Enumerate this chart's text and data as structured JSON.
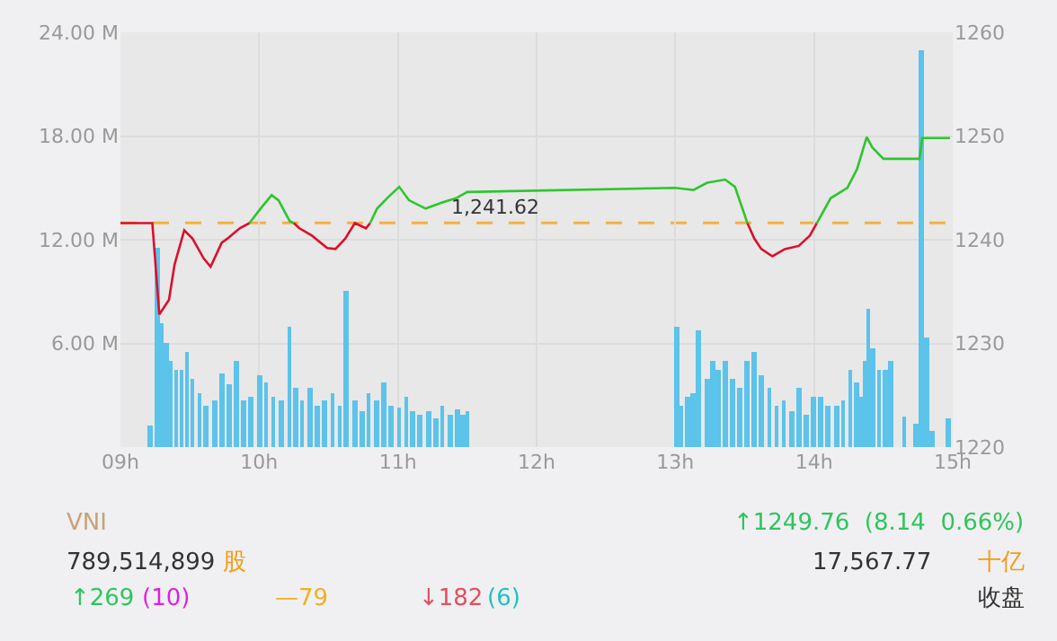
{
  "chart_data": {
    "type": "line",
    "xlim": [
      9,
      15
    ],
    "xticks": [
      {
        "value": 9,
        "label": "09h"
      },
      {
        "value": 10,
        "label": "10h"
      },
      {
        "value": 11,
        "label": "11h"
      },
      {
        "value": 12,
        "label": "12h"
      },
      {
        "value": 13,
        "label": "13h"
      },
      {
        "value": 14,
        "label": "14h"
      },
      {
        "value": 15,
        "label": "15h"
      }
    ],
    "ylim": [
      0,
      24
    ],
    "yticks": [
      {
        "value": 6,
        "label": "6.00 M"
      },
      {
        "value": 12,
        "label": "12.00 M"
      },
      {
        "value": 18,
        "label": "18.00 M"
      },
      {
        "value": 24,
        "label": "24.00 M"
      }
    ],
    "y2lim": [
      1220,
      1260
    ],
    "y2ticks": [
      1220,
      1230,
      1240,
      1250,
      1260
    ],
    "grid": true,
    "series": [
      {
        "type": "bar",
        "color": "#5cc3ea",
        "x": [
          9.21,
          9.27,
          9.29,
          9.33,
          9.36,
          9.4,
          9.44,
          9.48,
          9.52,
          9.57,
          9.62,
          9.68,
          9.73,
          9.78,
          9.84,
          9.89,
          9.94,
          10.0,
          10.05,
          10.1,
          10.16,
          10.22,
          10.26,
          10.31,
          10.37,
          10.42,
          10.47,
          10.53,
          10.58,
          10.63,
          10.69,
          10.74,
          10.79,
          10.85,
          10.9,
          10.95,
          11.01,
          11.06,
          11.11,
          11.16,
          11.22,
          11.27,
          11.32,
          11.38,
          11.43,
          11.47,
          11.5,
          13.01,
          13.04,
          13.09,
          13.13,
          13.17,
          13.23,
          13.27,
          13.31,
          13.36,
          13.41,
          13.46,
          13.52,
          13.57,
          13.62,
          13.68,
          13.73,
          13.78,
          13.84,
          13.89,
          13.94,
          14.0,
          14.05,
          14.1,
          14.16,
          14.21,
          14.26,
          14.31,
          14.34,
          14.37,
          14.39,
          14.42,
          14.47,
          14.51,
          14.55,
          14.65,
          14.73,
          14.77,
          14.81,
          14.85,
          14.97
        ],
        "values": [
          1.2,
          11.5,
          7.2,
          6.0,
          5.0,
          4.5,
          4.5,
          5.5,
          4.0,
          3.1,
          2.4,
          2.7,
          4.3,
          3.6,
          5.0,
          2.7,
          2.9,
          4.2,
          3.7,
          2.9,
          2.7,
          7.0,
          3.4,
          2.7,
          3.4,
          2.4,
          2.7,
          3.1,
          2.4,
          9.0,
          2.7,
          2.1,
          3.1,
          2.7,
          3.7,
          2.4,
          2.3,
          2.9,
          2.1,
          1.9,
          2.1,
          1.7,
          2.4,
          1.9,
          2.2,
          1.9,
          2.1,
          7.0,
          2.4,
          2.9,
          3.1,
          6.8,
          4.0,
          5.0,
          4.5,
          5.0,
          4.0,
          3.4,
          5.0,
          5.5,
          4.2,
          3.4,
          2.4,
          2.7,
          2.1,
          3.4,
          1.9,
          2.9,
          2.9,
          2.4,
          2.4,
          2.7,
          4.5,
          3.7,
          2.9,
          5.0,
          8.0,
          5.7,
          4.5,
          4.5,
          5.0,
          1.8,
          1.3,
          23.0,
          6.3,
          0.9,
          1.7
        ]
      },
      {
        "axis": "y2",
        "color": "#d9102e",
        "x": [
          9.0,
          9.23,
          9.28,
          9.35,
          9.39,
          9.46,
          9.52,
          9.6,
          9.65,
          9.73,
          9.78,
          9.86,
          9.93,
          null,
          10.25,
          10.29,
          10.38,
          10.49,
          10.55,
          10.62,
          10.69,
          10.77,
          10.8,
          null,
          13.52,
          13.57,
          13.62,
          13.7,
          13.79,
          13.89,
          13.97,
          14.02
        ],
        "values": [
          1241.6,
          1241.6,
          1232.8,
          1234.2,
          1237.6,
          1240.9,
          1240.1,
          1238.2,
          1237.4,
          1239.7,
          1240.2,
          1241.1,
          1241.6,
          null,
          1241.6,
          1241.1,
          1240.4,
          1239.2,
          1239.1,
          1240.1,
          1241.6,
          1241.1,
          1241.6,
          null,
          1241.6,
          1240.1,
          1239.1,
          1238.4,
          1239.1,
          1239.4,
          1240.4,
          1241.6
        ]
      },
      {
        "axis": "y2",
        "color": "#2ec52e",
        "x": [
          9.93,
          10.01,
          10.09,
          10.14,
          10.22,
          10.25,
          null,
          10.8,
          10.85,
          10.93,
          11.01,
          11.08,
          11.2,
          11.32,
          11.42,
          11.5,
          13.0,
          13.13,
          13.23,
          13.36,
          13.43,
          13.52,
          null,
          14.02,
          14.12,
          14.24,
          14.31,
          14.38,
          14.42,
          14.5,
          14.76,
          14.78,
          14.98
        ],
        "values": [
          1241.6,
          1243.0,
          1244.3,
          1243.8,
          1241.8,
          1241.6,
          null,
          1241.6,
          1243.0,
          1244.1,
          1245.1,
          1243.8,
          1243.0,
          1243.6,
          1244.0,
          1244.6,
          1245.0,
          1244.8,
          1245.5,
          1245.8,
          1245.1,
          1241.6,
          null,
          1241.6,
          1244.0,
          1245.0,
          1246.8,
          1249.9,
          1248.9,
          1247.8,
          1247.8,
          1249.8,
          1249.8
        ]
      }
    ],
    "ref_lines": [
      {
        "axis": "y2",
        "value": 1241.62,
        "label": "1,241.62",
        "color": "#f5b041",
        "line_style": "dashed"
      }
    ],
    "annotations": [
      "VNI",
      "789,514,899",
      "股",
      "↑1249.76  (8.14  0.66%)",
      "17,567.77",
      "十亿",
      "↑269",
      "(10)",
      "—79",
      "↓182",
      "(6)",
      "收盘"
    ]
  }
}
